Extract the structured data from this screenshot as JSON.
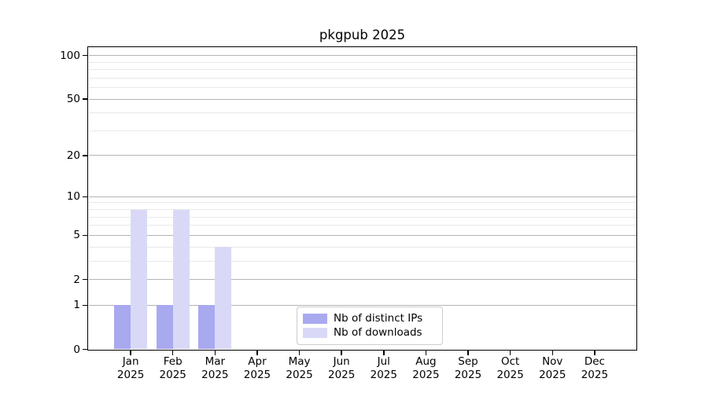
{
  "chart_data": {
    "type": "bar",
    "title": "pkgpub 2025",
    "categories": [
      "Jan 2025",
      "Feb 2025",
      "Mar 2025",
      "Apr 2025",
      "May 2025",
      "Jun 2025",
      "Jul 2025",
      "Aug 2025",
      "Sep 2025",
      "Oct 2025",
      "Nov 2025",
      "Dec 2025"
    ],
    "series": [
      {
        "name": "Nb of distinct IPs",
        "color": "#a9a9f0",
        "values": [
          1,
          1,
          1,
          0,
          0,
          0,
          0,
          0,
          0,
          0,
          0,
          0
        ]
      },
      {
        "name": "Nb of downloads",
        "color": "#d9d9f7",
        "values": [
          8,
          8,
          4,
          0,
          0,
          0,
          0,
          0,
          0,
          0,
          0,
          0
        ]
      }
    ],
    "xlabel": "",
    "ylabel": "",
    "yscale": "log1p",
    "y_ticks": [
      0,
      1,
      2,
      5,
      10,
      20,
      50,
      100
    ],
    "y_minor_ticks": [
      3,
      4,
      6,
      7,
      8,
      9,
      30,
      40,
      60,
      70,
      80,
      90
    ],
    "ylim": [
      0,
      114
    ],
    "grid": "on",
    "legend_position": "lower center inside",
    "colors": {
      "grid_major": "#b4b4b4",
      "grid_minor": "#e9e9e9",
      "spine": "#000000",
      "text": "#000000",
      "background": "#ffffff"
    }
  }
}
